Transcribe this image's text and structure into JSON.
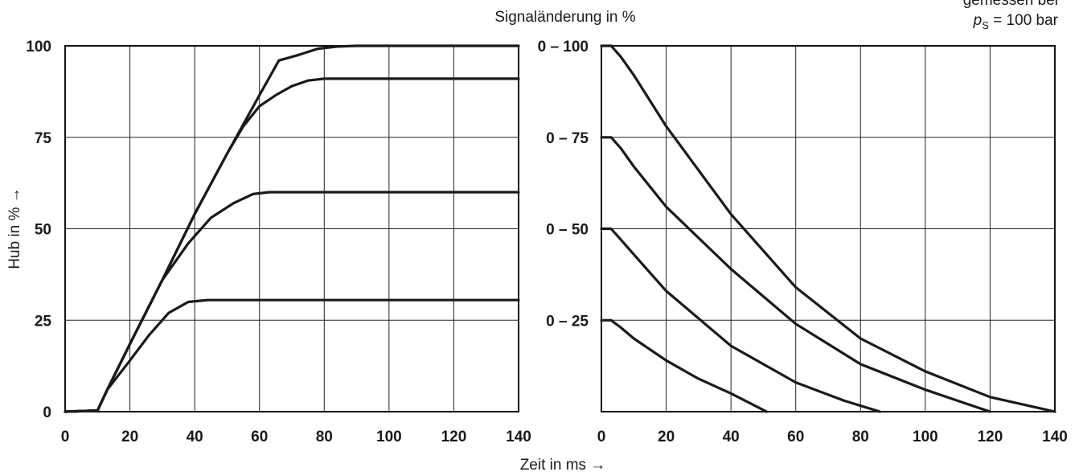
{
  "chart_data": [
    {
      "type": "line",
      "panel": "left",
      "ylabel": "Hub in % →",
      "xlim": [
        0,
        140
      ],
      "ylim": [
        0,
        100
      ],
      "x_ticks": [
        "0",
        "20",
        "40",
        "60",
        "80",
        "100",
        "120",
        "140"
      ],
      "y_ticks": [
        "0",
        "25",
        "50",
        "75",
        "100"
      ],
      "grid": true,
      "series": [
        {
          "points": [
            [
              0,
              0
            ],
            [
              10,
              0.3
            ],
            [
              13,
              6
            ],
            [
              20,
              18.5
            ],
            [
              30,
              36
            ],
            [
              40,
              54
            ],
            [
              50,
              70.5
            ],
            [
              60,
              86.5
            ],
            [
              66,
              96
            ],
            [
              72,
              97.5
            ],
            [
              78,
              99.2
            ],
            [
              84,
              99.8
            ],
            [
              90,
              100
            ],
            [
              100,
              100
            ],
            [
              140,
              100
            ]
          ]
        },
        {
          "points": [
            [
              0,
              0
            ],
            [
              10,
              0.3
            ],
            [
              13,
              6
            ],
            [
              20,
              18.5
            ],
            [
              30,
              36
            ],
            [
              40,
              54
            ],
            [
              50,
              70.5
            ],
            [
              55,
              78
            ],
            [
              60,
              83.5
            ],
            [
              65,
              86.5
            ],
            [
              70,
              89
            ],
            [
              75,
              90.5
            ],
            [
              80,
              91
            ],
            [
              85,
              91
            ],
            [
              140,
              91
            ]
          ]
        },
        {
          "points": [
            [
              0,
              0
            ],
            [
              10,
              0.3
            ],
            [
              13,
              6
            ],
            [
              20,
              18.5
            ],
            [
              30,
              36
            ],
            [
              38,
              46
            ],
            [
              45,
              53
            ],
            [
              52,
              57
            ],
            [
              58,
              59.5
            ],
            [
              63,
              60
            ],
            [
              140,
              60
            ]
          ]
        },
        {
          "points": [
            [
              0,
              0
            ],
            [
              10,
              0.3
            ],
            [
              13,
              6
            ],
            [
              20,
              14
            ],
            [
              26,
              21
            ],
            [
              32,
              27
            ],
            [
              38,
              30
            ],
            [
              44,
              30.5
            ],
            [
              140,
              30.5
            ]
          ]
        }
      ]
    },
    {
      "type": "line",
      "panel": "right",
      "title": "Signaländerung in %",
      "xlim": [
        0,
        140
      ],
      "ylim": [
        0,
        100
      ],
      "x_ticks": [
        "0",
        "20",
        "40",
        "60",
        "80",
        "100",
        "120",
        "140"
      ],
      "y_ticks": [
        "0 – 25",
        "0 – 50",
        "0 – 75",
        "0 – 100"
      ],
      "grid": true,
      "series": [
        {
          "points": [
            [
              0,
              100
            ],
            [
              3,
              100
            ],
            [
              6,
              97
            ],
            [
              10,
              92
            ],
            [
              20,
              78
            ],
            [
              40,
              54
            ],
            [
              60,
              34
            ],
            [
              80,
              20
            ],
            [
              100,
              11
            ],
            [
              120,
              4
            ],
            [
              140,
              0
            ]
          ]
        },
        {
          "points": [
            [
              0,
              75
            ],
            [
              3,
              75
            ],
            [
              6,
              72
            ],
            [
              10,
              67
            ],
            [
              20,
              56
            ],
            [
              40,
              39
            ],
            [
              60,
              24
            ],
            [
              80,
              13
            ],
            [
              100,
              6
            ],
            [
              110,
              3
            ],
            [
              120,
              0
            ]
          ]
        },
        {
          "points": [
            [
              0,
              50
            ],
            [
              3,
              50
            ],
            [
              6,
              47
            ],
            [
              10,
              43
            ],
            [
              20,
              33
            ],
            [
              40,
              18
            ],
            [
              60,
              8
            ],
            [
              75,
              3
            ],
            [
              86,
              0
            ]
          ]
        },
        {
          "points": [
            [
              0,
              25
            ],
            [
              3,
              25
            ],
            [
              6,
              23
            ],
            [
              10,
              20
            ],
            [
              20,
              14
            ],
            [
              30,
              9
            ],
            [
              40,
              5
            ],
            [
              51,
              0
            ]
          ]
        }
      ]
    }
  ],
  "xlabel": "Zeit in ms →",
  "note": {
    "line1": "gemessen bei",
    "p_symbol": "p",
    "p_subscript": "S",
    "rest": " = 100 bar"
  },
  "colors": {
    "line": "#1a1a1a",
    "grid": "#222222",
    "axis": "#111111"
  }
}
